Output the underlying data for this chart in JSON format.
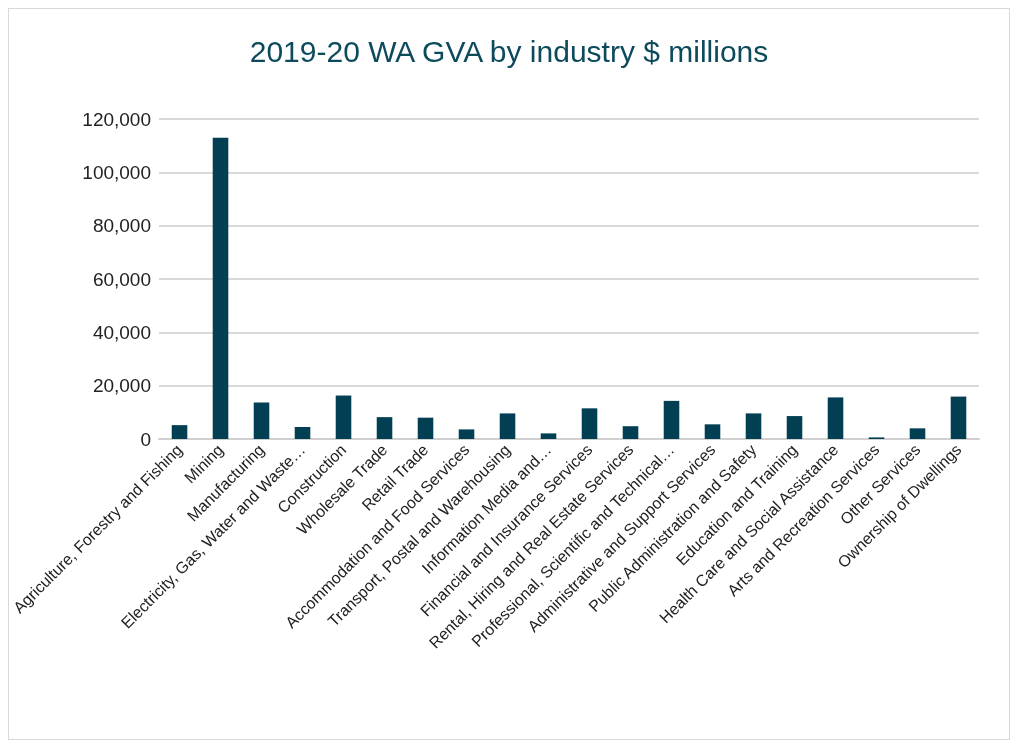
{
  "chart_data": {
    "type": "bar",
    "title": "2019-20 WA GVA by industry $ millions",
    "categories": [
      "Agriculture, Forestry and Fishing",
      "Mining",
      "Manufacturing",
      "Electricity, Gas, Water and Waste…",
      "Construction",
      "Wholesale Trade",
      "Retail Trade",
      "Accommodation and Food Services",
      "Transport, Postal and Warehousing",
      "Information Media and…",
      "Financial and Insurance Services",
      "Rental, Hiring and Real Estate Services",
      "Professional, Scientific and Technical…",
      "Administrative and Support Services",
      "Public Administration and Safety",
      "Education and Training",
      "Health Care and Social Assistance",
      "Arts and Recreation Services",
      "Other Services",
      "Ownership of Dwellings"
    ],
    "values": [
      5200,
      113000,
      13700,
      4500,
      16300,
      8200,
      8000,
      3600,
      9600,
      2100,
      11500,
      4800,
      14300,
      5500,
      9600,
      8600,
      15600,
      600,
      4000,
      15900
    ],
    "color": "#023f52",
    "ylim": [
      0,
      120000
    ],
    "yticks": [
      0,
      {
        "value": 20000,
        "label": "20,000"
      },
      {
        "value": 40000,
        "label": "40,000"
      },
      {
        "value": 60000,
        "label": "60,000"
      },
      {
        "value": 80000,
        "label": "80,000"
      },
      {
        "value": 100000,
        "label": "100,000"
      },
      {
        "value": 120000,
        "label": "120,000"
      }
    ],
    "grid": "y"
  }
}
